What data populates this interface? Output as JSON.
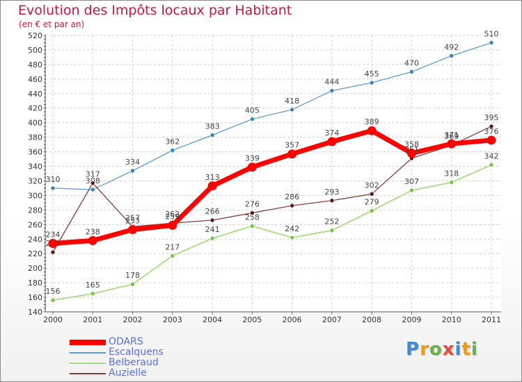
{
  "chart_data": {
    "type": "line",
    "title": "Evolution des Impôts locaux par Habitant",
    "subtitle": "(en € et par an)",
    "x": [
      "2000",
      "2001",
      "2002",
      "2003",
      "2004",
      "2005",
      "2006",
      "2007",
      "2008",
      "2009",
      "2010",
      "2011"
    ],
    "ylim": [
      140,
      520
    ],
    "yticks": [
      140,
      160,
      180,
      200,
      220,
      240,
      260,
      280,
      300,
      320,
      340,
      360,
      380,
      400,
      420,
      440,
      460,
      480,
      500,
      520
    ],
    "grid": true,
    "legend_position": "bottom-left",
    "series": [
      {
        "name": "Escalquens",
        "color": "#5b9bd5",
        "point_color": "#3a7fc0",
        "values": [
          310,
          308,
          334,
          362,
          383,
          405,
          418,
          444,
          455,
          470,
          492,
          510
        ]
      },
      {
        "name": "Belberaud",
        "color": "#a6dd7e",
        "point_color": "#7cc24a",
        "values": [
          156,
          165,
          178,
          217,
          241,
          258,
          242,
          252,
          279,
          307,
          318,
          342
        ]
      },
      {
        "name": "Auzielle",
        "color": "#8b3a3a",
        "point_color": "#5c1414",
        "values": [
          222,
          317,
          257,
          262,
          266,
          276,
          286,
          293,
          302,
          351,
          369,
          395
        ]
      },
      {
        "name": "ODARS",
        "color": "#ff0000",
        "point_color": "#ff0000",
        "values": [
          234,
          238,
          253,
          259,
          313,
          339,
          357,
          374,
          389,
          358,
          371,
          376
        ]
      }
    ],
    "legend_order": [
      "ODARS",
      "Escalquens",
      "Belberaud",
      "Auzielle"
    ]
  },
  "logo": {
    "text": [
      "P",
      "r",
      "o",
      "x",
      "i",
      "t",
      "i"
    ]
  }
}
